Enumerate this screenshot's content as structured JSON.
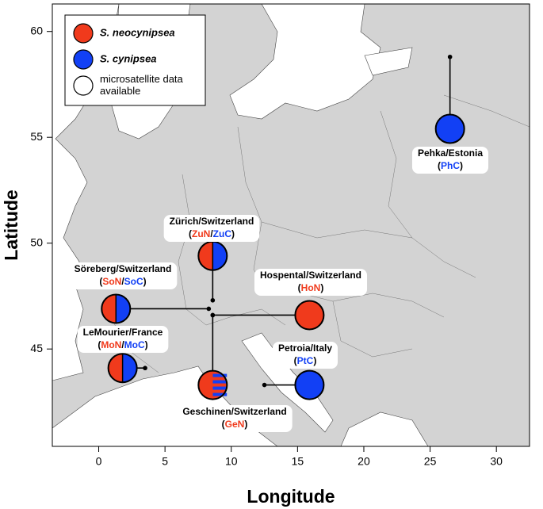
{
  "chart_data": {
    "type": "map",
    "xlabel": "Longitude",
    "ylabel": "Latitude",
    "xlim": [
      -3.5,
      32.5
    ],
    "ylim": [
      40.4,
      61.3
    ],
    "xticks": [
      0,
      5,
      10,
      15,
      20,
      25,
      30
    ],
    "yticks": [
      45,
      50,
      55,
      60
    ],
    "legend": [
      {
        "lines": [
          "S. neocynipsea"
        ],
        "italic": true,
        "color": "#f03a1c"
      },
      {
        "lines": [
          "S. cynipsea"
        ],
        "italic": true,
        "color": "#1240f5"
      },
      {
        "lines": [
          "microsatellite data",
          "available"
        ],
        "italic": false,
        "color": "#ffffff"
      }
    ],
    "sites": [
      {
        "name": "Pehka/Estonia",
        "code": [
          "(",
          "PhC",
          ")"
        ],
        "code_colors": [
          null,
          "#1240f5",
          null
        ],
        "lon": 26.5,
        "lat": 55.4,
        "sample_lon": 26.5,
        "sample_lat": 58.8,
        "circle_colors": [
          "#1240f5"
        ],
        "striped": false
      },
      {
        "name": "Zürich/Switzerland",
        "code": [
          "(",
          "ZuN",
          "/",
          "ZuC",
          ")"
        ],
        "code_colors": [
          null,
          "#f03a1c",
          null,
          "#1240f5",
          null
        ],
        "lon": 8.6,
        "lat": 49.4,
        "sample_lon": 8.6,
        "sample_lat": 47.3,
        "circle_colors": [
          "#f03a1c",
          "#1240f5"
        ],
        "striped": false
      },
      {
        "name": "Söreberg/Switzerland",
        "code": [
          "(",
          "SoN",
          "/",
          "SoC",
          ")"
        ],
        "code_colors": [
          null,
          "#f03a1c",
          null,
          "#1240f5",
          null
        ],
        "lon": 1.3,
        "lat": 46.9,
        "sample_lon": 8.3,
        "sample_lat": 46.9,
        "circle_colors": [
          "#f03a1c",
          "#1240f5"
        ],
        "striped": false
      },
      {
        "name": "Hospental/Switzerland",
        "code": [
          "(",
          "HoN",
          ")"
        ],
        "code_colors": [
          null,
          "#f03a1c",
          null
        ],
        "lon": 15.9,
        "lat": 46.6,
        "sample_lon": 8.6,
        "sample_lat": 46.6,
        "circle_colors": [
          "#f03a1c"
        ],
        "striped": false
      },
      {
        "name": "LeMourier/France",
        "code": [
          "(",
          "MoN",
          "/",
          "MoC",
          ")"
        ],
        "code_colors": [
          null,
          "#f03a1c",
          null,
          "#1240f5",
          null
        ],
        "lon": 1.8,
        "lat": 44.1,
        "sample_lon": 3.5,
        "sample_lat": 44.1,
        "circle_colors": [
          "#f03a1c",
          "#1240f5"
        ],
        "striped": false
      },
      {
        "name": "Petroia/Italy",
        "code": [
          "(",
          "PtC",
          ")"
        ],
        "code_colors": [
          null,
          "#1240f5",
          null
        ],
        "lon": 15.9,
        "lat": 43.3,
        "sample_lon": 12.5,
        "sample_lat": 43.3,
        "circle_colors": [
          "#1240f5"
        ],
        "striped": false
      },
      {
        "name": "Geschinen/Switzerland",
        "code": [
          "(",
          "GeN",
          ")"
        ],
        "code_colors": [
          null,
          "#f03a1c",
          null
        ],
        "lon": 8.6,
        "lat": 43.3,
        "sample_lon": 8.6,
        "sample_lat": 46.6,
        "circle_colors": [
          "#f03a1c",
          "#1240f5"
        ],
        "striped": true
      }
    ]
  }
}
